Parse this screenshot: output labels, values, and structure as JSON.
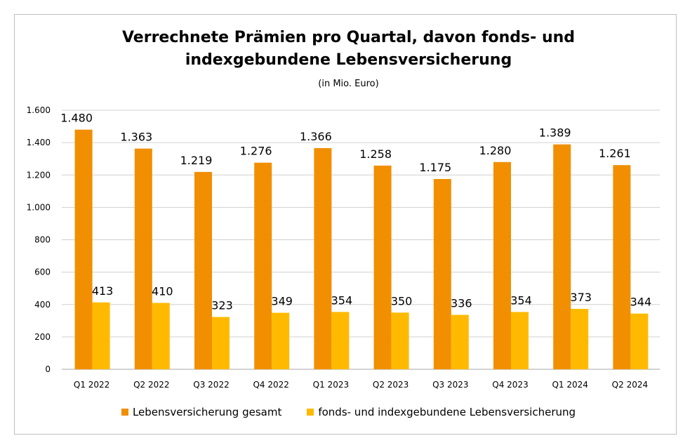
{
  "chart_data": {
    "type": "bar",
    "title_lines": [
      "Verrechnete Prämien pro Quartal, davon fonds- und",
      "indexgebundene Lebensversicherung"
    ],
    "subtitle": "(in Mio. Euro)",
    "categories": [
      "Q1 2022",
      "Q2 2022",
      "Q3 2022",
      "Q4 2022",
      "Q1 2023",
      "Q2 2023",
      "Q3 2023",
      "Q4 2023",
      "Q1 2024",
      "Q2 2024"
    ],
    "series": [
      {
        "name": "Lebensversicherung gesamt",
        "color": "#F18F00",
        "values": [
          1480,
          1363,
          1219,
          1276,
          1366,
          1258,
          1175,
          1280,
          1389,
          1261
        ],
        "labels": [
          "1.480",
          "1.363",
          "1.219",
          "1.276",
          "1.366",
          "1.258",
          "1.175",
          "1.280",
          "1.389",
          "1.261"
        ]
      },
      {
        "name": "fonds- und indexgebundene Lebensversicherung",
        "color": "#FFBA00",
        "values": [
          413,
          410,
          323,
          349,
          354,
          350,
          336,
          354,
          373,
          344
        ],
        "labels": [
          "413",
          "410",
          "323",
          "349",
          "354",
          "350",
          "336",
          "354",
          "373",
          "344"
        ]
      }
    ],
    "ylim": [
      0,
      1600
    ],
    "yticks": [
      0,
      200,
      400,
      600,
      800,
      1000,
      1200,
      1400,
      1600
    ],
    "ytick_labels": [
      "0",
      "200",
      "400",
      "600",
      "800",
      "1.000",
      "1.200",
      "1.400",
      "1.600"
    ],
    "grid": true,
    "legend_position": "bottom"
  }
}
